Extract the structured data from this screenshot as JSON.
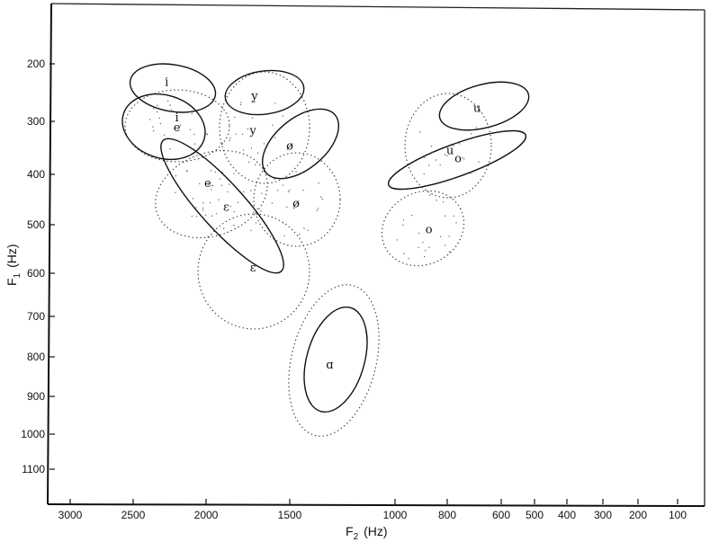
{
  "chart_data": {
    "type": "scatter",
    "title": "",
    "xlabel": "F",
    "xlabel_sub": "2",
    "xlabel_unit": "(Hz)",
    "ylabel": "F",
    "ylabel_sub": "1",
    "ylabel_unit": "(Hz)",
    "x_scale": "log",
    "x_reversed": true,
    "xlim": [
      3300,
      80
    ],
    "ylim": [
      90,
      1180
    ],
    "y_reversed": true,
    "grid": false,
    "legend": "none",
    "x_ticks": [
      {
        "value": 3000,
        "label": "3000"
      },
      {
        "value": 2500,
        "label": "2500"
      },
      {
        "value": 2000,
        "label": "2000"
      },
      {
        "value": 1500,
        "label": "1500"
      },
      {
        "value": 1000,
        "label": "1000"
      },
      {
        "value": 800,
        "label": "800"
      },
      {
        "value": 600,
        "label": "600"
      },
      {
        "value": 500,
        "label": "500"
      },
      {
        "value": 400,
        "label": "400"
      },
      {
        "value": 300,
        "label": "300"
      },
      {
        "value": 200,
        "label": "200"
      },
      {
        "value": 100,
        "label": "100"
      }
    ],
    "y_ticks": [
      {
        "value": 200,
        "label": "200"
      },
      {
        "value": 300,
        "label": "300"
      },
      {
        "value": 400,
        "label": "400"
      },
      {
        "value": 500,
        "label": "500"
      },
      {
        "value": 600,
        "label": "600"
      },
      {
        "value": 700,
        "label": "700"
      },
      {
        "value": 800,
        "label": "800"
      },
      {
        "value": 900,
        "label": "900"
      },
      {
        "value": 1000,
        "label": "1000"
      },
      {
        "value": 1100,
        "label": "1100"
      }
    ],
    "vowels": [
      {
        "symbol": "i",
        "f2": 2270,
        "f1": 232,
        "style": "solid"
      },
      {
        "symbol": "y",
        "f2": 1710,
        "f1": 256,
        "style": "solid"
      },
      {
        "symbol": "e",
        "f2": 2200,
        "f1": 312,
        "style": "solid"
      },
      {
        "symbol": "ø",
        "f2": 1500,
        "f1": 347,
        "style": "solid"
      },
      {
        "symbol": "u",
        "f2": 690,
        "f1": 277,
        "style": "solid"
      },
      {
        "symbol": "o",
        "f2": 760,
        "f1": 370,
        "style": "solid"
      },
      {
        "symbol": "ɛ",
        "f2": 1720,
        "f1": 589,
        "style": "solid"
      },
      {
        "symbol": "ɑ",
        "f2": 1310,
        "f1": 820,
        "style": "solid"
      },
      {
        "symbol": "i",
        "f2": 2200,
        "f1": 294,
        "style": "dotted"
      },
      {
        "symbol": "y",
        "f2": 1720,
        "f1": 318,
        "style": "dotted"
      },
      {
        "symbol": "e",
        "f2": 1990,
        "f1": 418,
        "style": "dotted"
      },
      {
        "symbol": "ɛ",
        "f2": 1880,
        "f1": 465,
        "style": "dotted"
      },
      {
        "symbol": "ø",
        "f2": 1470,
        "f1": 458,
        "style": "dotted"
      },
      {
        "symbol": "u",
        "f2": 790,
        "f1": 355,
        "style": "dotted"
      },
      {
        "symbol": "o",
        "f2": 870,
        "f1": 510,
        "style": "dotted"
      }
    ]
  }
}
